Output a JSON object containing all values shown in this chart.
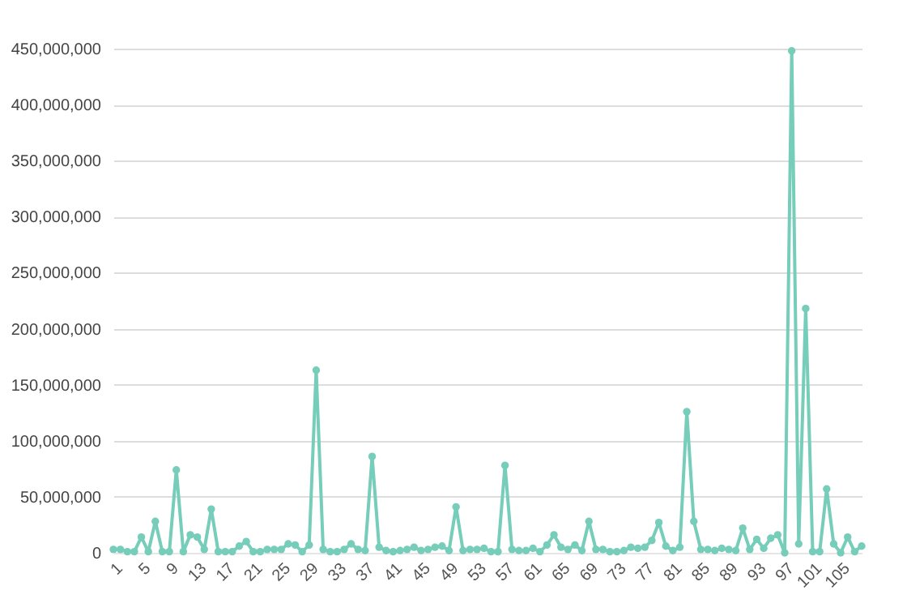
{
  "chart_data": {
    "type": "line",
    "categories": [
      "1",
      null,
      null,
      null,
      "5",
      null,
      null,
      null,
      "9",
      null,
      null,
      null,
      "13",
      null,
      null,
      null,
      "17",
      null,
      null,
      null,
      "21",
      null,
      null,
      null,
      "25",
      null,
      null,
      null,
      "29",
      null,
      null,
      null,
      "33",
      null,
      null,
      null,
      "37",
      null,
      null,
      null,
      "41",
      null,
      null,
      null,
      "45",
      null,
      null,
      null,
      "49",
      null,
      null,
      null,
      "53",
      null,
      null,
      null,
      "57",
      null,
      null,
      null,
      "61",
      null,
      null,
      null,
      "65",
      null,
      null,
      null,
      "69",
      null,
      null,
      null,
      "73",
      null,
      null,
      null,
      "77",
      null,
      null,
      null,
      "81",
      null,
      null,
      null,
      "85",
      null,
      null,
      null,
      "89",
      null,
      null,
      null,
      "93",
      null,
      null,
      null,
      "97",
      null,
      null,
      null,
      "101",
      null,
      null,
      null,
      "105",
      null,
      null,
      null
    ],
    "series": [
      {
        "color": "#76cdb9",
        "values": [
          3000000,
          3000000,
          1000000,
          1000000,
          14000000,
          1000000,
          28000000,
          1000000,
          1000000,
          74000000,
          1000000,
          16000000,
          14000000,
          3000000,
          39000000,
          1000000,
          1000000,
          1000000,
          6000000,
          10000000,
          1000000,
          1000000,
          3000000,
          3000000,
          3000000,
          8000000,
          7000000,
          1000000,
          7000000,
          163000000,
          3000000,
          1000000,
          1000000,
          3000000,
          8000000,
          3000000,
          2000000,
          86000000,
          5000000,
          2000000,
          1000000,
          2000000,
          3000000,
          5000000,
          2000000,
          3000000,
          5000000,
          6000000,
          2000000,
          41000000,
          2000000,
          3000000,
          3000000,
          4000000,
          1000000,
          1000000,
          78000000,
          3000000,
          2000000,
          2000000,
          4000000,
          1000000,
          7000000,
          16000000,
          5000000,
          3000000,
          7000000,
          2000000,
          28000000,
          3000000,
          3000000,
          1000000,
          1000000,
          2000000,
          5000000,
          4000000,
          5000000,
          11000000,
          27000000,
          6000000,
          2000000,
          5000000,
          126000000,
          28000000,
          3000000,
          3000000,
          2000000,
          4000000,
          3000000,
          2000000,
          22000000,
          3000000,
          12000000,
          4000000,
          13000000,
          16000000,
          0,
          448000000,
          8000000,
          218000000,
          1000000,
          1000000,
          57000000,
          8000000,
          0,
          14000000,
          1000000,
          6000000
        ]
      }
    ],
    "ylim": [
      0,
      450000000
    ],
    "yticks": [
      0,
      {
        "value": 50000000,
        "label": "50,000,000"
      },
      {
        "value": 100000000,
        "label": "100,000,000"
      },
      {
        "value": 150000000,
        "label": "150,000,000"
      },
      {
        "value": 200000000,
        "label": "200,000,000"
      },
      {
        "value": 250000000,
        "label": "250,000,000"
      },
      {
        "value": 300000000,
        "label": "300,000,000"
      },
      {
        "value": 350000000,
        "label": "350,000,000"
      },
      {
        "value": 400000000,
        "label": "400,000,000"
      },
      {
        "value": 450000000,
        "label": "450,000,000"
      }
    ],
    "grid": "y",
    "legend": false,
    "marker": "circle",
    "line_style": "solid"
  }
}
